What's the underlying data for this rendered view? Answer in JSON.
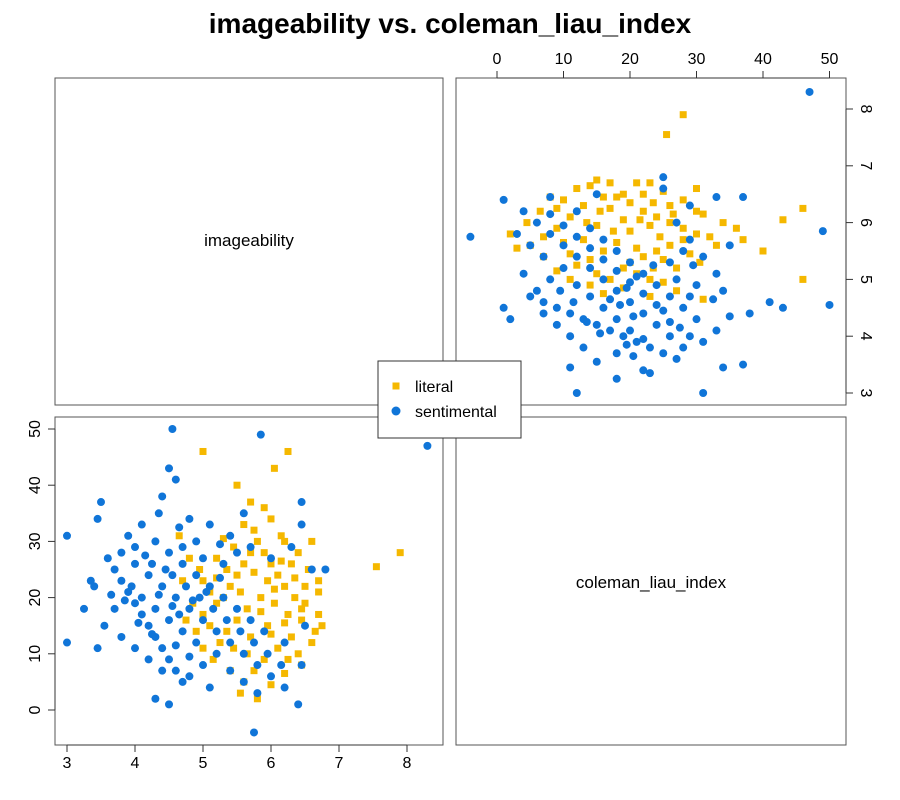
{
  "chart_data": {
    "type": "scatter",
    "title": "imageability vs. coleman_liau_index",
    "variables": [
      "imageability",
      "coleman_liau_index"
    ],
    "axes": {
      "imageability": {
        "range": [
          3,
          8.35
        ],
        "ticks": [
          3,
          4,
          5,
          6,
          7,
          8
        ]
      },
      "coleman_liau_index": {
        "range": [
          -4,
          52
        ],
        "ticks": [
          0,
          10,
          20,
          30,
          40,
          50
        ]
      }
    },
    "legend": {
      "placement": "center",
      "entries": [
        "literal",
        "sentimental"
      ]
    },
    "grid": false,
    "series": [
      {
        "name": "literal",
        "color": "#F5B800",
        "marker": "square",
        "points": [
          [
            7.9,
            28.0
          ],
          [
            7.55,
            25.5
          ],
          [
            5.0,
            46.0
          ],
          [
            6.05,
            43.0
          ],
          [
            6.25,
            46.0
          ],
          [
            5.5,
            40.0
          ],
          [
            5.7,
            37.0
          ],
          [
            6.2,
            30.0
          ],
          [
            6.6,
            30.0
          ],
          [
            6.3,
            26.0
          ],
          [
            6.7,
            23.0
          ],
          [
            6.7,
            21.0
          ],
          [
            6.75,
            15.0
          ],
          [
            6.65,
            14.0
          ],
          [
            6.45,
            18.0
          ],
          [
            6.35,
            20.0
          ],
          [
            6.2,
            22.0
          ],
          [
            6.1,
            24.0
          ],
          [
            6.0,
            26.0
          ],
          [
            5.9,
            28.0
          ],
          [
            5.8,
            30.0
          ],
          [
            5.7,
            28.0
          ],
          [
            5.6,
            26.0
          ],
          [
            5.5,
            24.0
          ],
          [
            5.4,
            22.0
          ],
          [
            5.3,
            20.0
          ],
          [
            5.2,
            19.0
          ],
          [
            5.1,
            21.0
          ],
          [
            5.0,
            23.0
          ],
          [
            4.95,
            25.0
          ],
          [
            5.2,
            27.0
          ],
          [
            5.45,
            29.0
          ],
          [
            5.75,
            32.0
          ],
          [
            6.0,
            34.0
          ],
          [
            6.15,
            31.0
          ],
          [
            6.4,
            28.0
          ],
          [
            6.55,
            25.0
          ],
          [
            6.5,
            22.0
          ],
          [
            6.45,
            16.0
          ],
          [
            6.3,
            13.0
          ],
          [
            6.1,
            11.0
          ],
          [
            5.9,
            9.0
          ],
          [
            5.75,
            7.0
          ],
          [
            5.6,
            5.0
          ],
          [
            5.55,
            3.0
          ],
          [
            5.8,
            2.0
          ],
          [
            6.0,
            4.5
          ],
          [
            6.2,
            6.5
          ],
          [
            6.4,
            10.0
          ],
          [
            6.6,
            12.0
          ],
          [
            5.35,
            14.0
          ],
          [
            5.5,
            16.0
          ],
          [
            5.65,
            18.0
          ],
          [
            5.85,
            20.0
          ],
          [
            6.05,
            19.0
          ],
          [
            6.25,
            17.0
          ],
          [
            5.95,
            15.0
          ],
          [
            5.7,
            13.0
          ],
          [
            5.45,
            11.0
          ],
          [
            5.25,
            12.0
          ],
          [
            5.1,
            15.0
          ],
          [
            5.0,
            17.0
          ],
          [
            4.85,
            19.0
          ],
          [
            4.9,
            14.0
          ],
          [
            5.15,
            9.0
          ],
          [
            5.4,
            7.0
          ],
          [
            5.65,
            10.0
          ],
          [
            6.0,
            13.5
          ],
          [
            6.2,
            15.5
          ],
          [
            6.35,
            23.5
          ],
          [
            6.15,
            26.5
          ],
          [
            5.95,
            23.0
          ],
          [
            5.75,
            24.5
          ],
          [
            5.55,
            21.0
          ],
          [
            5.35,
            25.0
          ],
          [
            5.2,
            23.5
          ],
          [
            5.85,
            17.5
          ],
          [
            6.05,
            21.5
          ],
          [
            6.5,
            19.0
          ],
          [
            6.7,
            17.0
          ],
          [
            5.6,
            33.0
          ],
          [
            5.3,
            30.5
          ],
          [
            4.8,
            27.0
          ],
          [
            4.7,
            23.0
          ],
          [
            4.65,
            31.0
          ],
          [
            6.45,
            8.0
          ],
          [
            6.25,
            9.0
          ],
          [
            5.0,
            11.0
          ],
          [
            4.75,
            16.0
          ],
          [
            5.9,
            36.0
          ]
        ]
      },
      {
        "name": "sentimental",
        "color": "#1075D8",
        "marker": "circle",
        "points": [
          [
            8.3,
            47.0
          ],
          [
            4.55,
            50.0
          ],
          [
            5.85,
            49.0
          ],
          [
            4.5,
            43.0
          ],
          [
            4.6,
            41.0
          ],
          [
            4.4,
            38.0
          ],
          [
            3.5,
            37.0
          ],
          [
            3.45,
            34.0
          ],
          [
            3.0,
            31.0
          ],
          [
            3.0,
            12.0
          ],
          [
            3.45,
            11.0
          ],
          [
            3.4,
            22.0
          ],
          [
            3.6,
            27.0
          ],
          [
            3.7,
            25.0
          ],
          [
            3.8,
            23.0
          ],
          [
            3.9,
            21.0
          ],
          [
            4.0,
            19.0
          ],
          [
            4.1,
            17.0
          ],
          [
            4.2,
            15.0
          ],
          [
            4.3,
            13.0
          ],
          [
            4.4,
            11.0
          ],
          [
            4.5,
            9.0
          ],
          [
            4.6,
            7.0
          ],
          [
            4.7,
            5.0
          ],
          [
            4.3,
            2.0
          ],
          [
            4.5,
            1.0
          ],
          [
            5.75,
            -4.0
          ],
          [
            6.4,
            1.0
          ],
          [
            6.2,
            4.0
          ],
          [
            6.0,
            6.0
          ],
          [
            5.8,
            8.0
          ],
          [
            5.6,
            10.0
          ],
          [
            5.4,
            12.0
          ],
          [
            5.2,
            14.0
          ],
          [
            5.0,
            16.0
          ],
          [
            4.8,
            18.0
          ],
          [
            4.6,
            20.0
          ],
          [
            4.4,
            22.0
          ],
          [
            4.2,
            24.0
          ],
          [
            4.0,
            26.0
          ],
          [
            3.8,
            28.0
          ],
          [
            3.9,
            31.0
          ],
          [
            4.1,
            33.0
          ],
          [
            4.35,
            35.0
          ],
          [
            4.8,
            34.0
          ],
          [
            5.1,
            33.0
          ],
          [
            5.4,
            31.0
          ],
          [
            5.7,
            29.0
          ],
          [
            6.0,
            27.0
          ],
          [
            6.3,
            29.0
          ],
          [
            6.45,
            37.0
          ],
          [
            6.45,
            33.0
          ],
          [
            6.6,
            25.0
          ],
          [
            6.8,
            25.0
          ],
          [
            6.5,
            15.0
          ],
          [
            6.45,
            8.0
          ],
          [
            6.2,
            12.0
          ],
          [
            5.9,
            14.0
          ],
          [
            5.7,
            16.0
          ],
          [
            5.5,
            18.0
          ],
          [
            5.3,
            20.0
          ],
          [
            5.1,
            22.0
          ],
          [
            4.9,
            24.0
          ],
          [
            4.7,
            26.0
          ],
          [
            4.5,
            28.0
          ],
          [
            4.3,
            30.0
          ],
          [
            4.0,
            29.0
          ],
          [
            3.7,
            18.0
          ],
          [
            3.55,
            15.0
          ],
          [
            3.8,
            13.0
          ],
          [
            4.0,
            11.0
          ],
          [
            4.2,
            9.0
          ],
          [
            4.4,
            7.0
          ],
          [
            4.8,
            6.0
          ],
          [
            5.0,
            8.0
          ],
          [
            5.2,
            10.0
          ],
          [
            5.4,
            7.0
          ],
          [
            5.6,
            5.0
          ],
          [
            5.8,
            3.0
          ],
          [
            4.9,
            12.0
          ],
          [
            4.7,
            14.0
          ],
          [
            4.5,
            16.0
          ],
          [
            4.3,
            18.0
          ],
          [
            4.1,
            20.0
          ],
          [
            3.95,
            22.0
          ],
          [
            4.25,
            26.0
          ],
          [
            4.55,
            24.0
          ],
          [
            4.75,
            22.0
          ],
          [
            4.95,
            20.0
          ],
          [
            5.15,
            18.0
          ],
          [
            5.35,
            16.0
          ],
          [
            5.55,
            14.0
          ],
          [
            5.75,
            12.0
          ],
          [
            5.95,
            10.0
          ],
          [
            6.15,
            8.0
          ],
          [
            4.65,
            17.0
          ],
          [
            4.85,
            19.5
          ],
          [
            5.05,
            21.0
          ],
          [
            5.25,
            23.5
          ],
          [
            4.45,
            25.0
          ],
          [
            4.15,
            27.5
          ],
          [
            3.85,
            19.5
          ],
          [
            4.05,
            15.5
          ],
          [
            4.25,
            13.5
          ],
          [
            4.6,
            11.5
          ],
          [
            4.8,
            9.5
          ],
          [
            5.1,
            4.0
          ],
          [
            5.3,
            26.0
          ],
          [
            5.5,
            28.0
          ],
          [
            5.6,
            35.0
          ],
          [
            4.9,
            30.0
          ],
          [
            4.65,
            32.5
          ],
          [
            3.65,
            20.5
          ],
          [
            3.35,
            23.0
          ],
          [
            3.25,
            18.0
          ],
          [
            5.0,
            27.0
          ],
          [
            5.25,
            29.5
          ],
          [
            4.7,
            29.0
          ],
          [
            4.35,
            20.5
          ],
          [
            4.55,
            18.5
          ]
        ]
      }
    ]
  }
}
